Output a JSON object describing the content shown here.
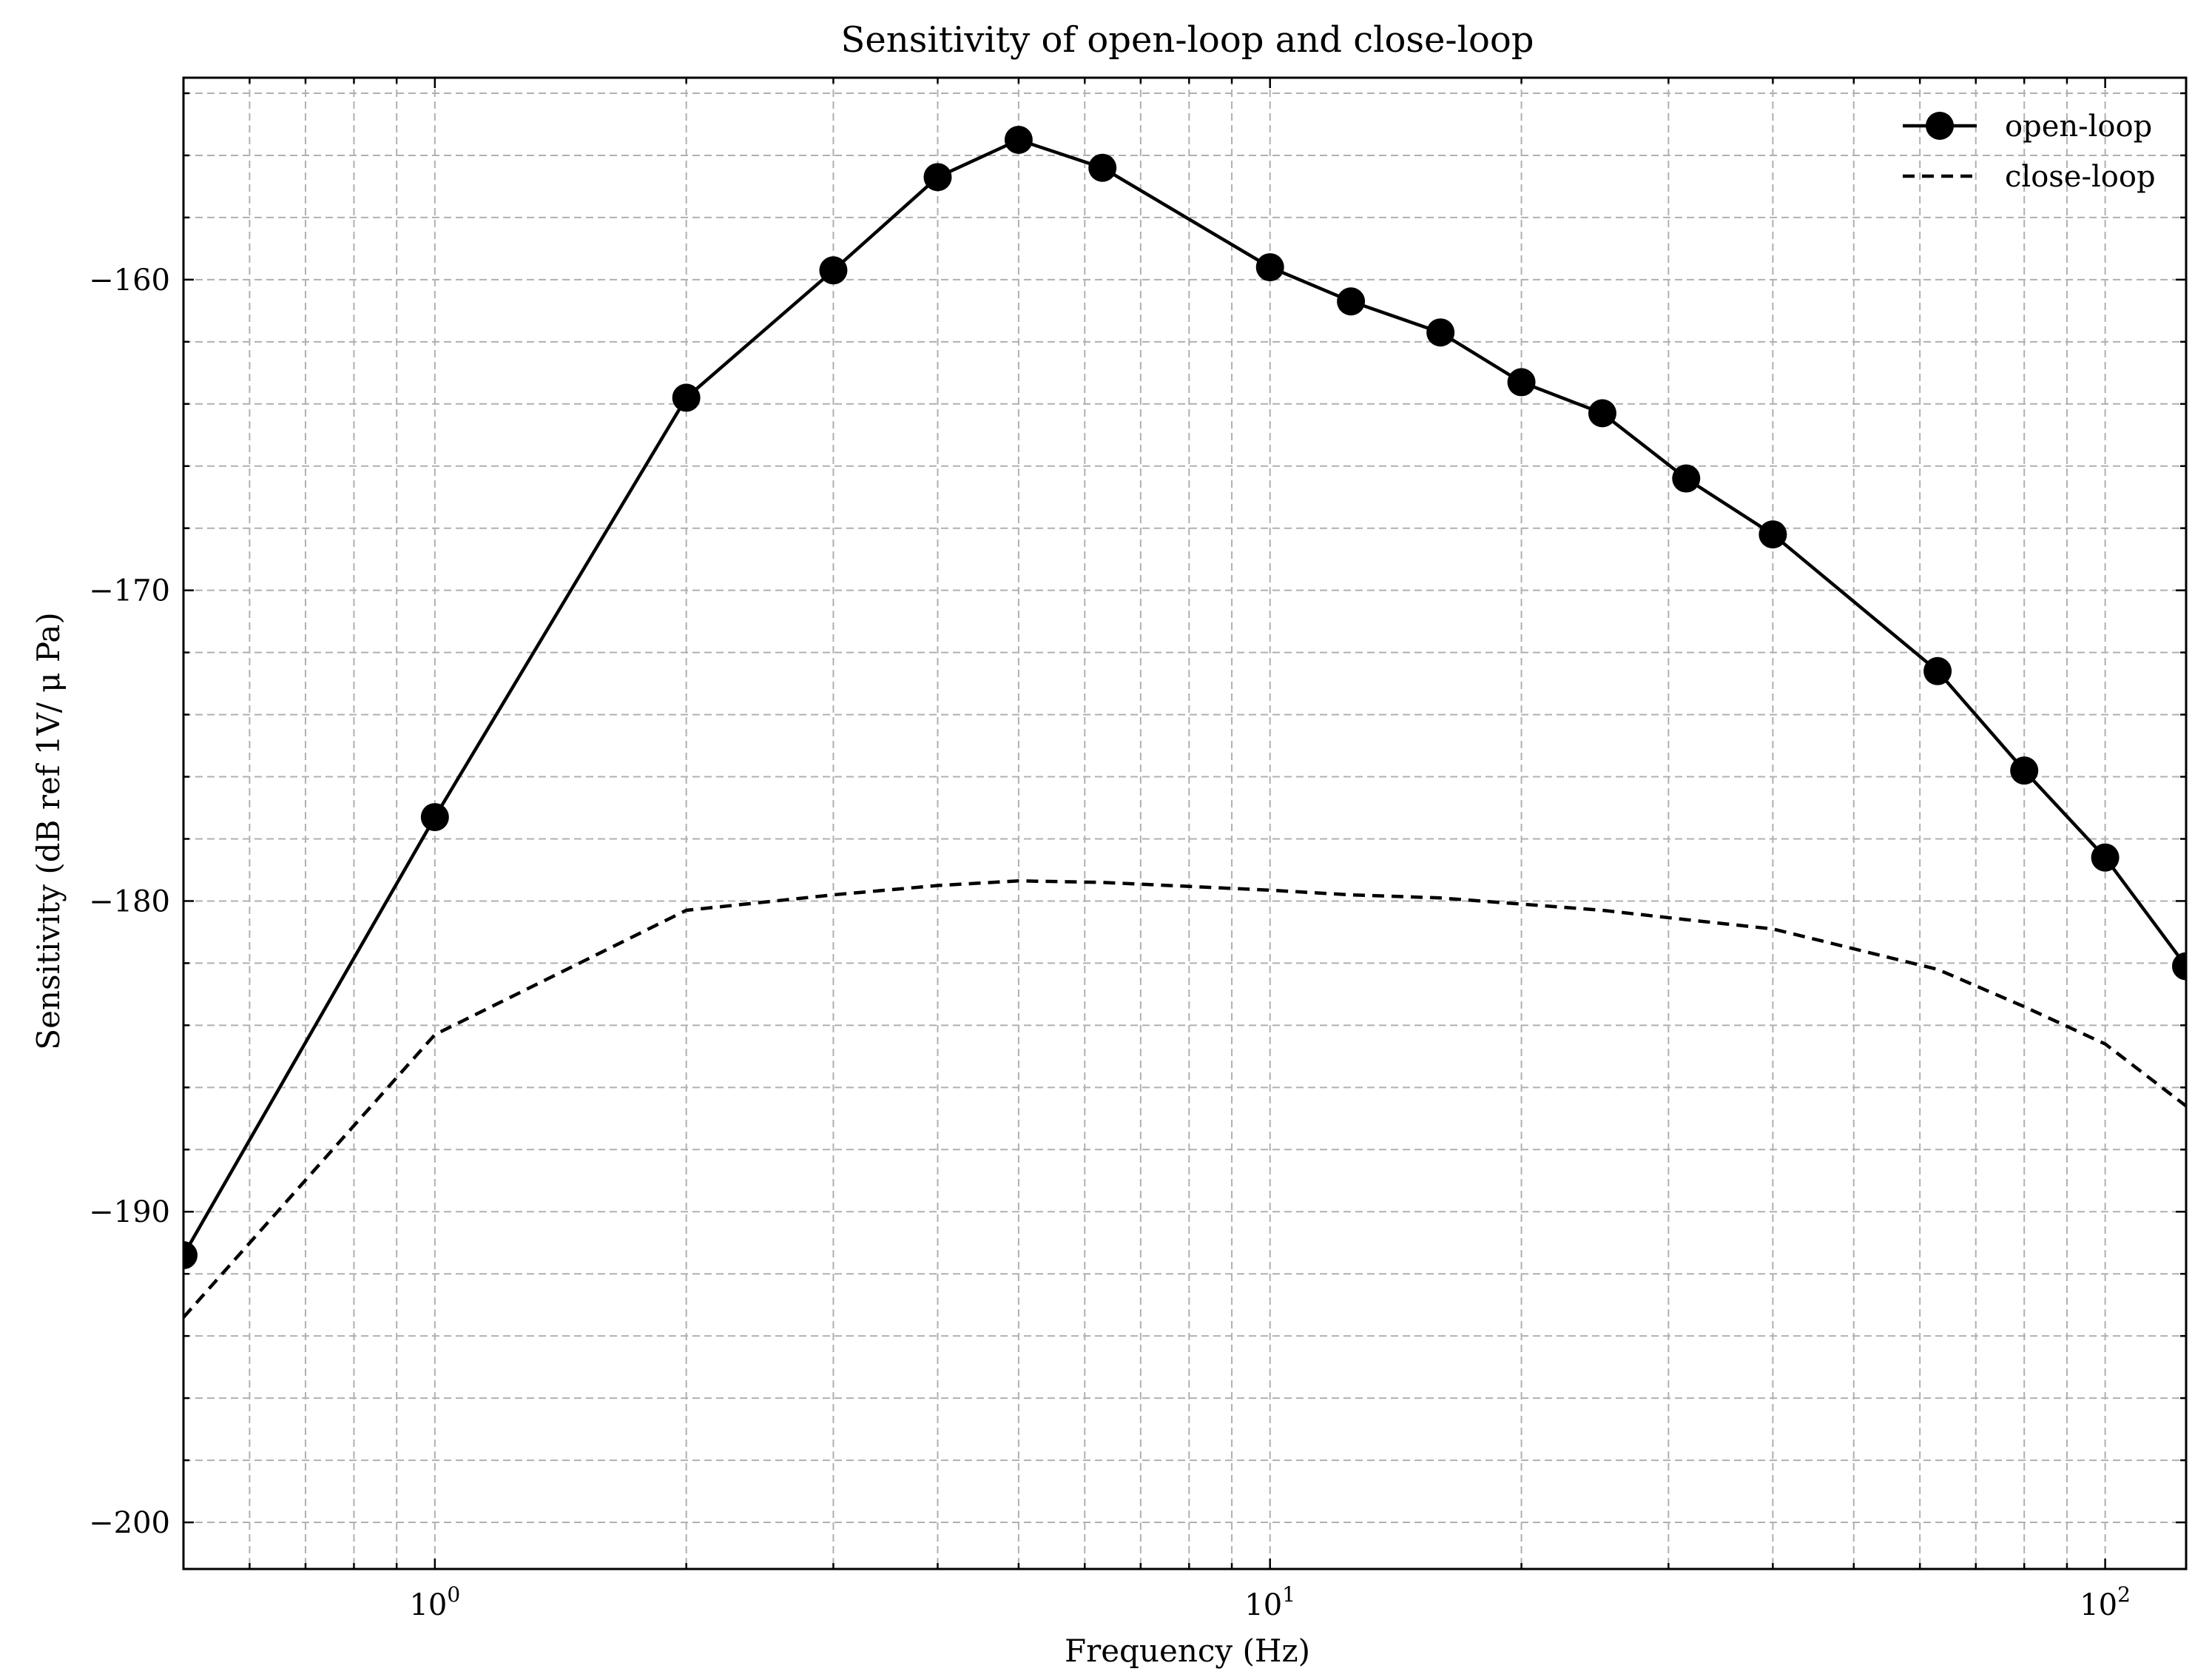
{
  "chart_data": {
    "type": "line",
    "title": "Sensitivity of open-loop and close-loop",
    "xlabel": "Frequency (Hz)",
    "ylabel": "Sensitivity (dB ref 1V/ μ Pa)",
    "xscale": "log",
    "xlim": [
      0.5,
      125
    ],
    "ylim": [
      -201.5,
      -153.5
    ],
    "grid": true,
    "legend_position": "top-right",
    "x_ticks": [
      {
        "value": 1,
        "base": "10",
        "exp": "0"
      },
      {
        "value": 10,
        "base": "10",
        "exp": "1"
      },
      {
        "value": 100,
        "base": "10",
        "exp": "2"
      }
    ],
    "y_ticks": [
      {
        "value": -160,
        "label": "−160"
      },
      {
        "value": -170,
        "label": "−170"
      },
      {
        "value": -180,
        "label": "−180"
      },
      {
        "value": -190,
        "label": "−190"
      },
      {
        "value": -200,
        "label": "−200"
      }
    ],
    "series": [
      {
        "name": "open-loop",
        "style": "solid-marker",
        "x": [
          0.5,
          1,
          2,
          3,
          4,
          5,
          6.3,
          10,
          12.5,
          16,
          20,
          25,
          31.5,
          40,
          63,
          80,
          100,
          125
        ],
        "y": [
          -191.4,
          -177.3,
          -163.8,
          -159.7,
          -156.7,
          -155.5,
          -156.4,
          -159.6,
          -160.7,
          -161.7,
          -163.3,
          -164.3,
          -166.4,
          -168.2,
          -172.6,
          -175.8,
          -178.6,
          -182.1
        ]
      },
      {
        "name": "close-loop",
        "style": "dashed",
        "x": [
          0.5,
          1,
          2,
          3,
          4,
          5,
          6.3,
          10,
          12.5,
          16,
          20,
          25,
          31.5,
          40,
          63,
          80,
          100,
          125
        ],
        "y": [
          -193.4,
          -184.3,
          -180.3,
          -179.8,
          -179.5,
          -179.35,
          -179.4,
          -179.65,
          -179.8,
          -179.9,
          -180.1,
          -180.3,
          -180.6,
          -180.9,
          -182.2,
          -183.4,
          -184.6,
          -186.6
        ]
      }
    ]
  }
}
